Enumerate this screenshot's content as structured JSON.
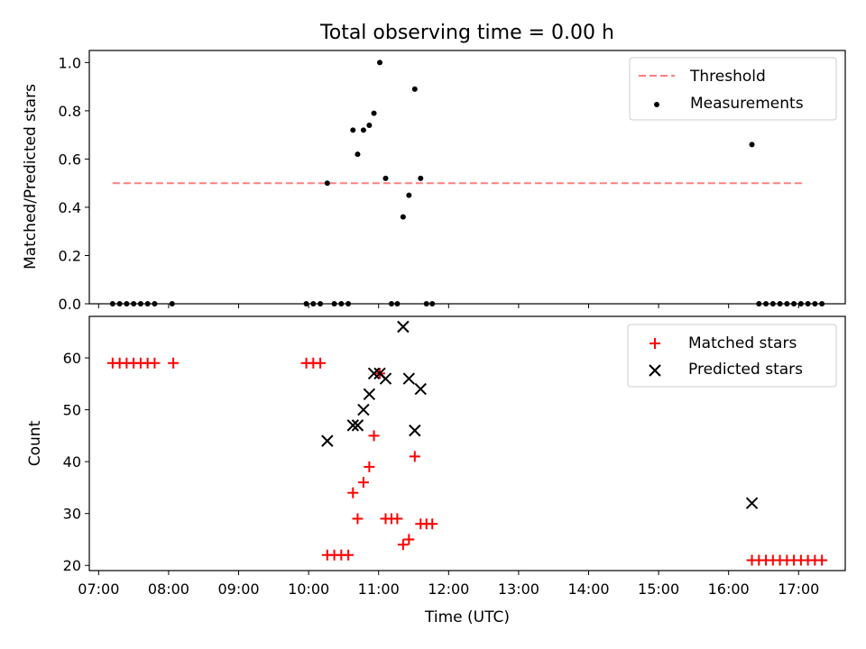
{
  "figure": {
    "title": "Total observing time = 0.00 h"
  },
  "chart_data": [
    {
      "type": "scatter",
      "ylabel": "Matched/Predicted stars",
      "xlim": [
        "06:52",
        "17:40"
      ],
      "ylim": [
        0,
        1.05
      ],
      "yticks": [
        "0.0",
        "0.2",
        "0.4",
        "0.6",
        "0.8",
        "1.0"
      ],
      "threshold": {
        "name": "Threshold",
        "value": 0.5,
        "x_start": "07:12",
        "x_end": "17:05",
        "color": "#ff7f7f"
      },
      "series": [
        {
          "name": "Measurements",
          "color": "#000000",
          "points": [
            [
              "07:12",
              0
            ],
            [
              "07:18",
              0
            ],
            [
              "07:24",
              0
            ],
            [
              "07:30",
              0
            ],
            [
              "07:36",
              0
            ],
            [
              "07:42",
              0
            ],
            [
              "07:48",
              0
            ],
            [
              "08:03",
              0
            ],
            [
              "09:58",
              0
            ],
            [
              "10:04",
              0
            ],
            [
              "10:10",
              0
            ],
            [
              "10:16",
              0.5
            ],
            [
              "10:22",
              0
            ],
            [
              "10:28",
              0
            ],
            [
              "10:34",
              0
            ],
            [
              "10:38",
              0.72
            ],
            [
              "10:42",
              0.62
            ],
            [
              "10:47",
              0.72
            ],
            [
              "10:52",
              0.74
            ],
            [
              "10:56",
              0.79
            ],
            [
              "11:01",
              1.0
            ],
            [
              "11:06",
              0.52
            ],
            [
              "11:11",
              0
            ],
            [
              "11:16",
              0
            ],
            [
              "11:21",
              0.36
            ],
            [
              "11:26",
              0.45
            ],
            [
              "11:31",
              0.89
            ],
            [
              "11:36",
              0.52
            ],
            [
              "11:41",
              0
            ],
            [
              "11:46",
              0
            ],
            [
              "16:20",
              0.66
            ],
            [
              "16:26",
              0
            ],
            [
              "16:32",
              0
            ],
            [
              "16:38",
              0
            ],
            [
              "16:44",
              0
            ],
            [
              "16:50",
              0
            ],
            [
              "16:56",
              0
            ],
            [
              "17:02",
              0
            ],
            [
              "17:08",
              0
            ],
            [
              "17:14",
              0
            ],
            [
              "17:20",
              0
            ]
          ]
        }
      ],
      "legend": {
        "position": "top-right",
        "entries": [
          "Threshold",
          "Measurements"
        ]
      }
    },
    {
      "type": "scatter",
      "xlabel": "Time (UTC)",
      "ylabel": "Count",
      "xlim": [
        "06:52",
        "17:40"
      ],
      "ylim": [
        19,
        68
      ],
      "yticks": [
        "20",
        "30",
        "40",
        "50",
        "60"
      ],
      "xticks": [
        "07:00",
        "08:00",
        "09:00",
        "10:00",
        "11:00",
        "12:00",
        "13:00",
        "14:00",
        "15:00",
        "16:00",
        "17:00"
      ],
      "series": [
        {
          "name": "Matched stars",
          "marker": "plus",
          "color": "#ff0000",
          "points": [
            [
              "07:12",
              59
            ],
            [
              "07:18",
              59
            ],
            [
              "07:24",
              59
            ],
            [
              "07:30",
              59
            ],
            [
              "07:36",
              59
            ],
            [
              "07:42",
              59
            ],
            [
              "07:48",
              59
            ],
            [
              "08:04",
              59
            ],
            [
              "09:58",
              59
            ],
            [
              "10:04",
              59
            ],
            [
              "10:10",
              59
            ],
            [
              "10:16",
              22
            ],
            [
              "10:22",
              22
            ],
            [
              "10:28",
              22
            ],
            [
              "10:34",
              22
            ],
            [
              "10:38",
              34
            ],
            [
              "10:42",
              29
            ],
            [
              "10:47",
              36
            ],
            [
              "10:52",
              39
            ],
            [
              "10:56",
              45
            ],
            [
              "11:01",
              57
            ],
            [
              "11:06",
              29
            ],
            [
              "11:11",
              29
            ],
            [
              "11:16",
              29
            ],
            [
              "11:21",
              24
            ],
            [
              "11:26",
              25
            ],
            [
              "11:31",
              41
            ],
            [
              "11:36",
              28
            ],
            [
              "11:41",
              28
            ],
            [
              "11:46",
              28
            ],
            [
              "16:20",
              21
            ],
            [
              "16:26",
              21
            ],
            [
              "16:32",
              21
            ],
            [
              "16:38",
              21
            ],
            [
              "16:44",
              21
            ],
            [
              "16:50",
              21
            ],
            [
              "16:56",
              21
            ],
            [
              "17:02",
              21
            ],
            [
              "17:08",
              21
            ],
            [
              "17:14",
              21
            ],
            [
              "17:20",
              21
            ]
          ]
        },
        {
          "name": "Predicted stars",
          "marker": "x",
          "color": "#000000",
          "points": [
            [
              "10:16",
              44
            ],
            [
              "10:38",
              47
            ],
            [
              "10:42",
              47
            ],
            [
              "10:47",
              50
            ],
            [
              "10:52",
              53
            ],
            [
              "10:56",
              57
            ],
            [
              "11:01",
              57
            ],
            [
              "11:06",
              56
            ],
            [
              "11:21",
              66
            ],
            [
              "11:26",
              56
            ],
            [
              "11:31",
              46
            ],
            [
              "11:36",
              54
            ],
            [
              "16:20",
              32
            ]
          ]
        }
      ],
      "legend": {
        "position": "top-right",
        "entries": [
          "Matched stars",
          "Predicted stars"
        ]
      }
    }
  ]
}
